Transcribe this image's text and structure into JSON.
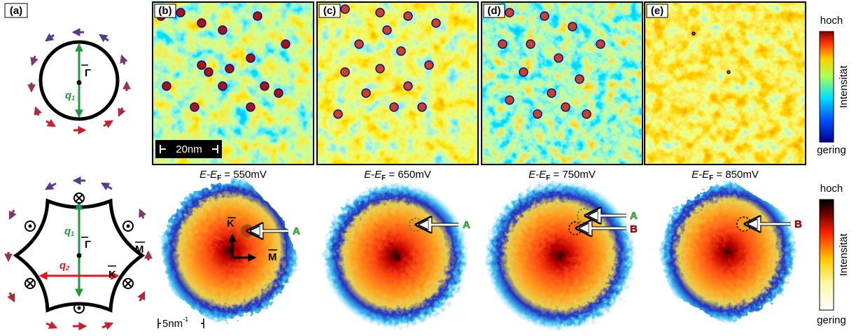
{
  "panels": [
    {
      "label": "(a)"
    },
    {
      "label": "(b)"
    },
    {
      "label": "(c)"
    },
    {
      "label": "(d)"
    },
    {
      "label": "(e)"
    }
  ],
  "colorbars": [
    {
      "high": "hoch",
      "title": "Intensität",
      "low": "gering"
    },
    {
      "high": "hoch",
      "title": "Intensität",
      "low": "gering"
    }
  ],
  "energies": [
    {
      "var": "E-E",
      "sub": "F",
      "value": " = 550mV"
    },
    {
      "var": "E-E",
      "sub": "F",
      "value": " = 650mV"
    },
    {
      "var": "E-E",
      "sub": "F",
      "value": " = 750mV"
    },
    {
      "var": "E-E",
      "sub": "F",
      "value": " = 850mV"
    }
  ],
  "scalebars": {
    "real": "20nm",
    "reciprocal": "5nm",
    "reciprocal_exp": "-1"
  },
  "diagram": {
    "gamma": "Γ",
    "q": "q",
    "q1_sub": "1",
    "q2_sub": "2",
    "k": "K",
    "m": "M"
  },
  "annotations": {
    "b_k": "K",
    "b_m": "M",
    "b_a": "A",
    "c_a": "A",
    "d_a": "A",
    "d_b": "B",
    "e_b": "B"
  }
}
